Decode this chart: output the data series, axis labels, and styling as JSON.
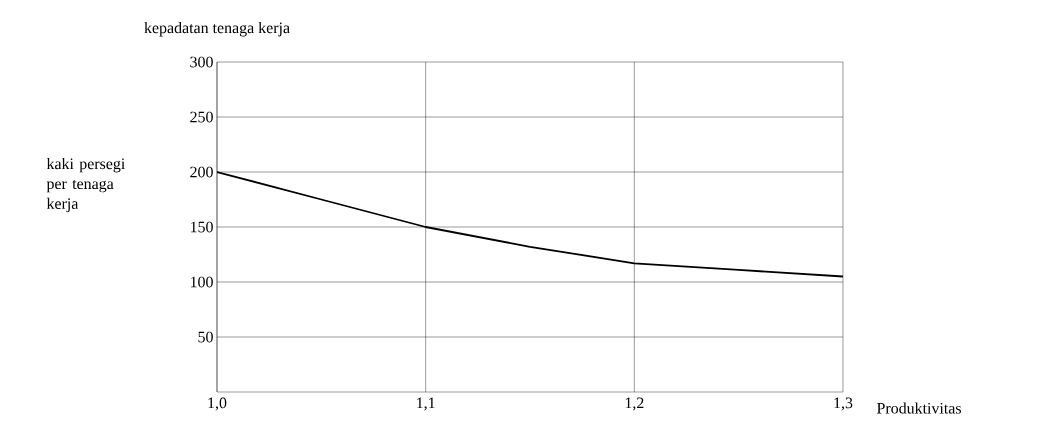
{
  "chart_data": {
    "type": "line",
    "title": "kepadatan tenaga kerja",
    "xlabel": "Produktivitas",
    "ylabel": "kaki persegi per tenaga kerja",
    "x": [
      1.0,
      1.05,
      1.1,
      1.15,
      1.2,
      1.25,
      1.3
    ],
    "values": [
      200,
      175,
      150,
      132,
      117,
      111,
      105
    ],
    "color": "#000000",
    "xlim": [
      1.0,
      1.3
    ],
    "ylim": [
      0,
      300
    ],
    "xticks": [
      {
        "value": 1.0,
        "label": "1,0"
      },
      {
        "value": 1.1,
        "label": "1,1"
      },
      {
        "value": 1.2,
        "label": "1,2"
      },
      {
        "value": 1.3,
        "label": "1,3"
      }
    ],
    "yticks": [
      50,
      100,
      150,
      200,
      250,
      300
    ],
    "grid": true,
    "marker": "none",
    "line_style": "solid"
  }
}
